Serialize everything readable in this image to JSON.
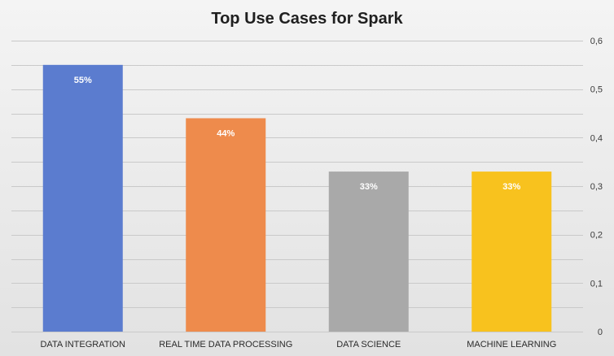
{
  "chart_data": {
    "type": "bar",
    "title": "Top Use Cases for Spark",
    "xlabel": "",
    "ylabel": "",
    "categories": [
      "DATA INTEGRATION",
      "REAL TIME DATA PROCESSING",
      "DATA SCIENCE",
      "MACHINE LEARNING"
    ],
    "values": [
      0.55,
      0.44,
      0.33,
      0.33
    ],
    "data_labels": [
      "55%",
      "44%",
      "33%",
      "33%"
    ],
    "colors": [
      "#5b7ccf",
      "#ee8b4c",
      "#a9a9a9",
      "#f8c21e"
    ],
    "ylim": [
      0,
      0.6
    ],
    "y_ticks": [
      0,
      0.1,
      0.2,
      0.3,
      0.4,
      0.5,
      0.6
    ],
    "y_tick_labels": [
      "0",
      "0,1",
      "0,2",
      "0,3",
      "0,4",
      "0,5",
      "0,6"
    ],
    "y_axis_position": "right",
    "grid": true,
    "legend": "none"
  }
}
